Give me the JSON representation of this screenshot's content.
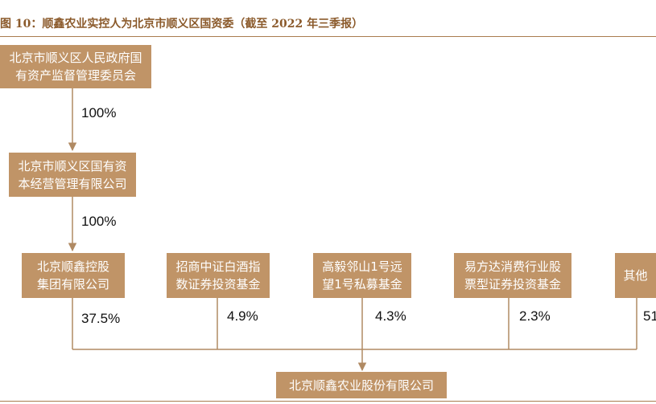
{
  "figure": {
    "title": "图 10：顺鑫农业实控人为北京市顺义区国资委（截至 2022 年三季报）"
  },
  "entities": {
    "top": "北京市顺义区人民政府国\n有资产监督管理委员会",
    "middle": "北京市顺义区国有资\n本经营管理有限公司",
    "holding_group": "北京顺鑫控股\n集团有限公司",
    "fund_zhaoshang": "招商中证白酒指\n数证券投资基金",
    "fund_gaoyi": "高毅邻山1号远\n望1号私募基金",
    "fund_efunds": "易方达消费行业股\n票型证券投资基金",
    "others": "其他",
    "company": "北京顺鑫农业股份有限公司"
  },
  "ownership": {
    "top_to_middle": "100%",
    "middle_to_group": "100%",
    "group": "37.5%",
    "zhaoshang": "4.9%",
    "gaoyi": "4.3%",
    "efunds": "2.3%",
    "others": "51"
  }
}
